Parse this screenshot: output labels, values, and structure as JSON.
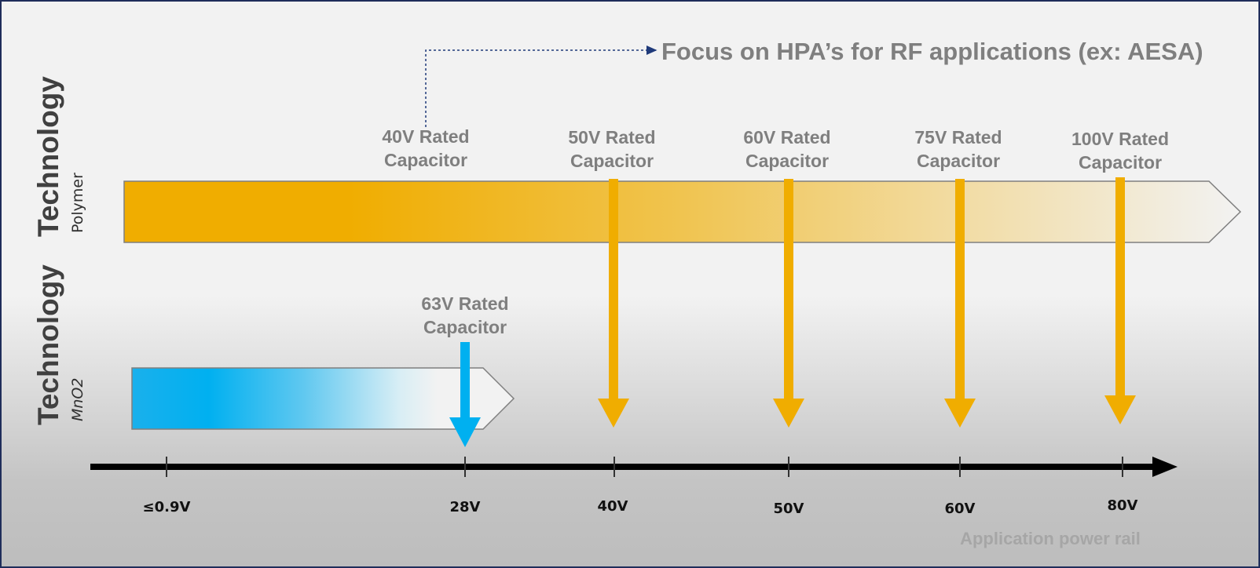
{
  "focus_note": "Focus on HPA’s for RF applications (ex: AESA)",
  "rows": {
    "polymer": {
      "title": "Technology",
      "subtitle": "Polymer"
    },
    "mno2": {
      "title": "Technology",
      "subtitle": "MnO2"
    }
  },
  "capacitors": {
    "c40": {
      "line1": "40V Rated",
      "line2": "Capacitor"
    },
    "c50": {
      "line1": "50V Rated",
      "line2": "Capacitor"
    },
    "c60": {
      "line1": "60V Rated",
      "line2": "Capacitor"
    },
    "c75": {
      "line1": "75V Rated",
      "line2": "Capacitor"
    },
    "c100": {
      "line1": "100V Rated",
      "line2": "Capacitor"
    },
    "c63": {
      "line1": "63V Rated",
      "line2": "Capacitor"
    }
  },
  "axis": {
    "title": "Application power rail",
    "ticks": [
      "≤0.9V",
      "28V",
      "40V",
      "50V",
      "60V",
      "80V"
    ]
  },
  "colors": {
    "polymer": "#f0ad00",
    "mno2": "#00b0f0",
    "connector": "#1f3a7a",
    "axis": "#000000",
    "border": "#1f2d5a"
  }
}
